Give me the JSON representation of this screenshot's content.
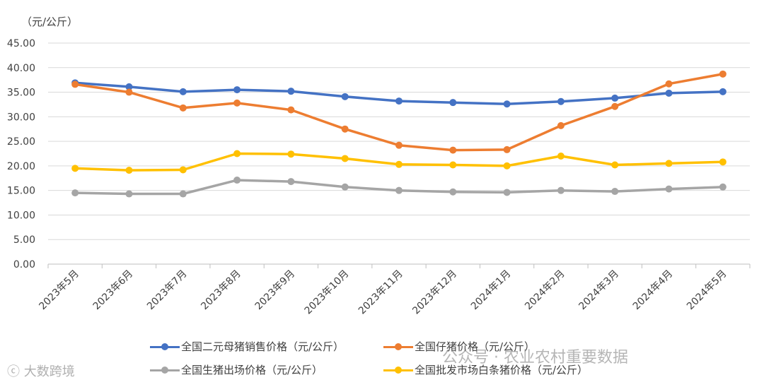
{
  "unit_label": "（元/公斤）",
  "watermarks": {
    "left": "ⓒ 大数跨境",
    "right": "公众号 · 农业农村重要数据"
  },
  "chart_data": {
    "type": "line",
    "categories": [
      "2023年5月",
      "2023年6月",
      "2023年7月",
      "2023年8月",
      "2023年9月",
      "2023年10月",
      "2023年11月",
      "2023年12月",
      "2024年1月",
      "2024年2月",
      "2024年3月",
      "2024年4月",
      "2024年5月"
    ],
    "ylim": [
      0,
      45
    ],
    "yticks": [
      "0.00",
      "5.00",
      "10.00",
      "15.00",
      "20.00",
      "25.00",
      "30.00",
      "35.00",
      "40.00",
      "45.00"
    ],
    "grid": true,
    "legend_position": "bottom",
    "series": [
      {
        "name": "全国二元母猪销售价格（元/公斤）",
        "color": "#4472C4",
        "values": [
          36.9,
          36.1,
          35.1,
          35.5,
          35.2,
          34.1,
          33.2,
          32.9,
          32.6,
          33.1,
          33.8,
          34.8,
          35.1
        ]
      },
      {
        "name": "全国仔猪价格（元/公斤）",
        "color": "#ED7D31",
        "values": [
          36.6,
          35.0,
          31.8,
          32.8,
          31.4,
          27.5,
          24.2,
          23.2,
          23.3,
          28.2,
          32.1,
          36.7,
          38.7
        ]
      },
      {
        "name": "全国生猪出场价格（元/公斤）",
        "color": "#A5A5A5",
        "values": [
          14.5,
          14.3,
          14.3,
          17.1,
          16.8,
          15.7,
          15.0,
          14.7,
          14.6,
          15.0,
          14.8,
          15.3,
          15.7
        ]
      },
      {
        "name": "全国批发市场白条猪价格（元/公斤）",
        "color": "#FFC000",
        "values": [
          19.5,
          19.1,
          19.2,
          22.5,
          22.4,
          21.5,
          20.3,
          20.2,
          20.0,
          22.0,
          20.2,
          20.5,
          20.8
        ]
      }
    ]
  }
}
